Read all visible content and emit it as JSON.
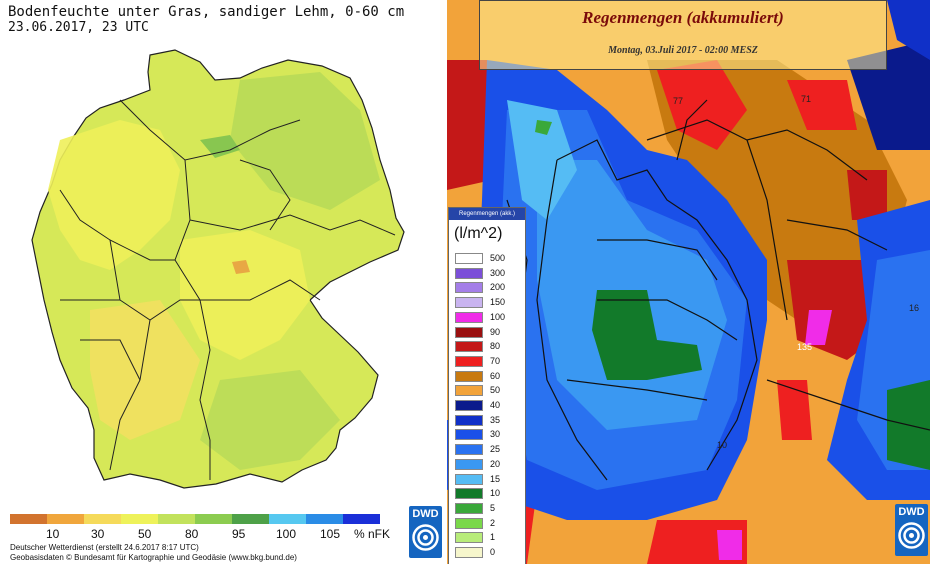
{
  "left": {
    "title": "Bodenfeuchte unter Gras, sandiger Lehm, 0-60 cm",
    "date": "23.06.2017, 23 UTC",
    "scale": {
      "colors": [
        "#d2732e",
        "#f0a63c",
        "#f5da5a",
        "#eef25a",
        "#c2e25c",
        "#8ccc50",
        "#4ea148",
        "#56c8f0",
        "#2a8ce6",
        "#1a2fd8"
      ],
      "labels": [
        "10",
        "30",
        "50",
        "80",
        "95",
        "100",
        "105",
        "% nFK"
      ]
    },
    "credit1": "Deutscher Wetterdienst (erstellt 24.6.2017 8:17 UTC)",
    "credit2": "Geobasisdaten © Bundesamt für Kartographie und Geodäsie (www.bkg.bund.de)",
    "logo": "DWD"
  },
  "right": {
    "title": "Regenmengen (akkumuliert)",
    "subtitle": "Montag, 03.Juli 2017 - 02:00 MESZ",
    "legend_header": "Regenmengen (akk.)",
    "unit": "(l/m^2)",
    "legend": [
      {
        "label": "500",
        "color": "#ffffff"
      },
      {
        "label": "300",
        "color": "#7b4fd8"
      },
      {
        "label": "200",
        "color": "#a47ee8"
      },
      {
        "label": "150",
        "color": "#c9b4f0"
      },
      {
        "label": "100",
        "color": "#f02ce8"
      },
      {
        "label": "90",
        "color": "#9a1010"
      },
      {
        "label": "80",
        "color": "#c41818"
      },
      {
        "label": "70",
        "color": "#ee2020"
      },
      {
        "label": "60",
        "color": "#c87a10"
      },
      {
        "label": "50",
        "color": "#f2a33a"
      },
      {
        "label": "40",
        "color": "#0a1a8c"
      },
      {
        "label": "35",
        "color": "#1030c8"
      },
      {
        "label": "30",
        "color": "#1a50e8"
      },
      {
        "label": "25",
        "color": "#2a72f0"
      },
      {
        "label": "20",
        "color": "#3a98f2"
      },
      {
        "label": "15",
        "color": "#55bcf4"
      },
      {
        "label": "10",
        "color": "#127a2a"
      },
      {
        "label": "5",
        "color": "#3aa83a"
      },
      {
        "label": "2",
        "color": "#7ad84a"
      },
      {
        "label": "1",
        "color": "#b8ec7a"
      },
      {
        "label": "0",
        "color": "#f6f6cc"
      }
    ],
    "map_labels": [
      "77",
      "71",
      "135",
      "10",
      "16"
    ],
    "logo": "DWD"
  }
}
